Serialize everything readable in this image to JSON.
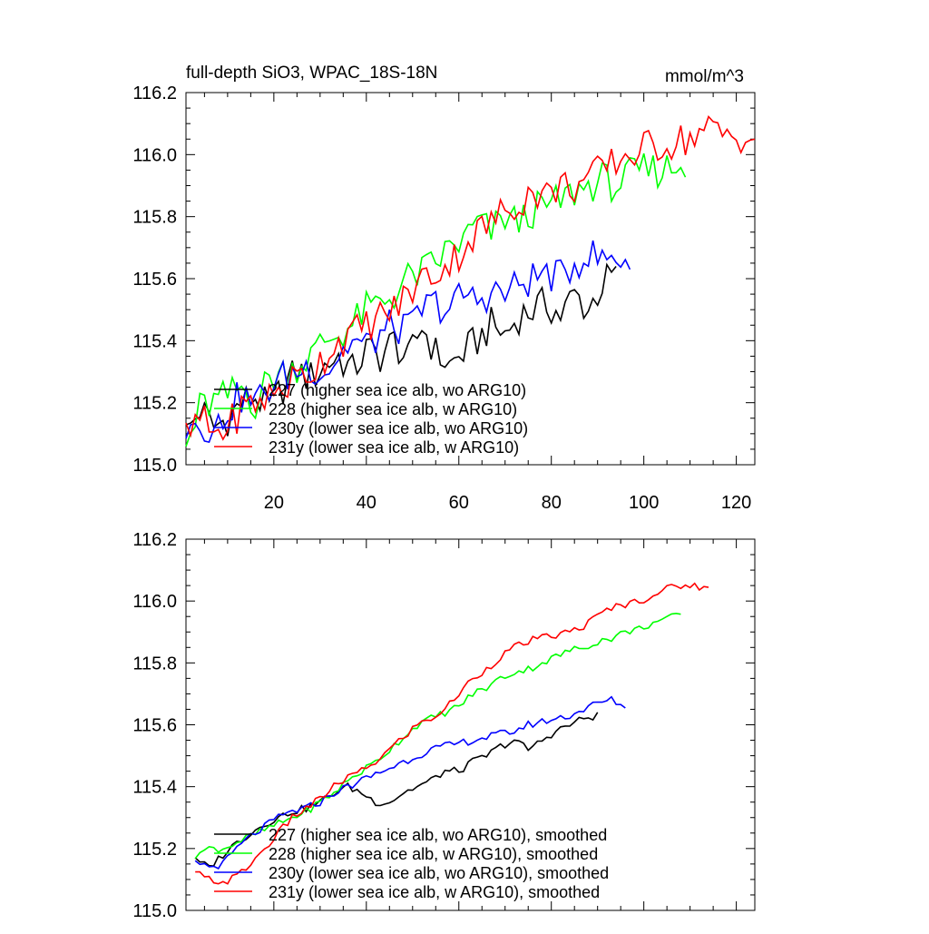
{
  "chart_data": [
    {
      "type": "line",
      "title": "full-depth SiO3, WPAC_18S-18N",
      "units": "mmol/m^3",
      "xlim": [
        1,
        124
      ],
      "ylim": [
        115.0,
        116.2
      ],
      "x_ticks": [
        20,
        40,
        60,
        80,
        100,
        120
      ],
      "y_ticks": [
        115.0,
        115.2,
        115.4,
        115.6,
        115.8,
        116.0,
        116.2
      ],
      "x_tick_labels": [
        "20",
        "40",
        "60",
        "80",
        "100",
        "120"
      ],
      "y_tick_labels": [
        "115.0",
        "115.2",
        "115.4",
        "115.6",
        "115.8",
        "116.0",
        "116.2"
      ],
      "legend_position": "bottom-left",
      "series": [
        {
          "name": "227 (higher sea ice alb, wo ARG10)",
          "color": "#000000",
          "x_start": 1,
          "x_step": 3,
          "values": [
            115.1,
            115.18,
            115.12,
            115.15,
            115.2,
            115.22,
            115.18,
            115.25,
            115.3,
            115.28,
            115.32,
            115.35,
            115.3,
            115.37,
            115.35,
            115.4,
            115.33,
            115.45,
            115.36,
            115.32,
            115.36,
            115.4,
            115.45,
            115.42,
            115.48,
            115.5,
            115.52,
            115.48,
            115.55,
            115.5,
            115.58,
            115.62
          ]
        },
        {
          "name": "228 (higher sea ice alb, w ARG10)",
          "color": "#00ff00",
          "x_start": 1,
          "x_step": 3,
          "values": [
            115.05,
            115.18,
            115.2,
            115.22,
            115.25,
            115.2,
            115.28,
            115.3,
            115.32,
            115.35,
            115.4,
            115.42,
            115.45,
            115.5,
            115.52,
            115.55,
            115.6,
            115.62,
            115.65,
            115.7,
            115.72,
            115.78,
            115.75,
            115.8,
            115.78,
            115.82,
            115.83,
            115.85,
            115.88,
            115.9,
            115.92,
            115.9,
            115.93,
            115.95,
            115.95,
            115.96,
            115.97
          ]
        },
        {
          "name": "230y (lower sea ice alb, wo ARG10)",
          "color": "#0000ff",
          "x_start": 1,
          "x_step": 3,
          "values": [
            115.12,
            115.15,
            115.1,
            115.18,
            115.22,
            115.2,
            115.25,
            115.28,
            115.3,
            115.32,
            115.3,
            115.35,
            115.4,
            115.38,
            115.42,
            115.45,
            115.43,
            115.5,
            115.52,
            115.5,
            115.55,
            115.53,
            115.56,
            115.55,
            115.58,
            115.6,
            115.62,
            115.6,
            115.65,
            115.68,
            115.66,
            115.67,
            115.66
          ]
        },
        {
          "name": "231y (lower sea ice alb, w ARG10)",
          "color": "#ff0000",
          "x_start": 1,
          "x_step": 3,
          "values": [
            115.08,
            115.15,
            115.1,
            115.12,
            115.18,
            115.2,
            115.22,
            115.25,
            115.28,
            115.3,
            115.35,
            115.4,
            115.42,
            115.45,
            115.48,
            115.5,
            115.55,
            115.6,
            115.62,
            115.65,
            115.7,
            115.75,
            115.78,
            115.82,
            115.85,
            115.88,
            115.87,
            115.9,
            115.9,
            115.92,
            115.95,
            115.98,
            116.0,
            116.02,
            116.03,
            116.04,
            116.05,
            116.07,
            116.08,
            116.06,
            116.06,
            116.05
          ]
        }
      ]
    },
    {
      "type": "line",
      "title": "",
      "units": "",
      "xlim": [
        1,
        124
      ],
      "ylim": [
        115.0,
        116.2
      ],
      "x_ticks": [
        20,
        40,
        60,
        80,
        100,
        120
      ],
      "y_ticks": [
        115.0,
        115.2,
        115.4,
        115.6,
        115.8,
        116.0,
        116.2
      ],
      "x_tick_labels": [],
      "y_tick_labels": [
        "115.0",
        "115.2",
        "115.4",
        "115.6",
        "115.8",
        "116.0",
        "116.2"
      ],
      "legend_position": "bottom-left",
      "series": [
        {
          "name": "227 (higher sea ice alb, wo ARG10), smoothed",
          "color": "#000000",
          "x_start": 3,
          "x_step": 3,
          "values": [
            115.16,
            115.14,
            115.18,
            115.22,
            115.25,
            115.28,
            115.3,
            115.32,
            115.33,
            115.35,
            115.38,
            115.4,
            115.38,
            115.35,
            115.35,
            115.38,
            115.4,
            115.42,
            115.45,
            115.45,
            115.48,
            115.5,
            115.53,
            115.55,
            115.52,
            115.55,
            115.58,
            115.6,
            115.62,
            115.63
          ]
        },
        {
          "name": "228 (higher sea ice alb, w ARG10), smoothed",
          "color": "#00ff00",
          "x_start": 3,
          "x_step": 3,
          "values": [
            115.18,
            115.2,
            115.2,
            115.22,
            115.24,
            115.26,
            115.28,
            115.3,
            115.32,
            115.35,
            115.38,
            115.42,
            115.45,
            115.48,
            115.52,
            115.56,
            115.6,
            115.62,
            115.64,
            115.66,
            115.7,
            115.72,
            115.75,
            115.77,
            115.78,
            115.8,
            115.82,
            115.84,
            115.85,
            115.87,
            115.88,
            115.9,
            115.91,
            115.93,
            115.94,
            115.96
          ]
        },
        {
          "name": "230y (lower sea ice alb, wo ARG10), smoothed",
          "color": "#0000ff",
          "x_start": 3,
          "x_step": 3,
          "values": [
            115.16,
            115.14,
            115.15,
            115.2,
            115.24,
            115.27,
            115.3,
            115.32,
            115.33,
            115.35,
            115.38,
            115.4,
            115.42,
            115.44,
            115.46,
            115.48,
            115.5,
            115.52,
            115.53,
            115.54,
            115.55,
            115.56,
            115.57,
            115.58,
            115.6,
            115.61,
            115.62,
            115.63,
            115.65,
            115.67,
            115.68,
            115.66
          ]
        },
        {
          "name": "231y (lower sea ice alb, w ARG10), smoothed",
          "color": "#ff0000",
          "x_start": 3,
          "x_step": 3,
          "values": [
            115.12,
            115.1,
            115.09,
            115.11,
            115.15,
            115.2,
            115.25,
            115.3,
            115.33,
            115.36,
            115.4,
            115.43,
            115.45,
            115.48,
            115.52,
            115.56,
            115.6,
            115.62,
            115.65,
            115.7,
            115.75,
            115.78,
            115.82,
            115.85,
            115.87,
            115.88,
            115.89,
            115.9,
            115.92,
            115.95,
            115.98,
            115.99,
            116.0,
            116.02,
            116.04,
            116.05,
            116.05,
            116.04
          ]
        }
      ]
    }
  ]
}
